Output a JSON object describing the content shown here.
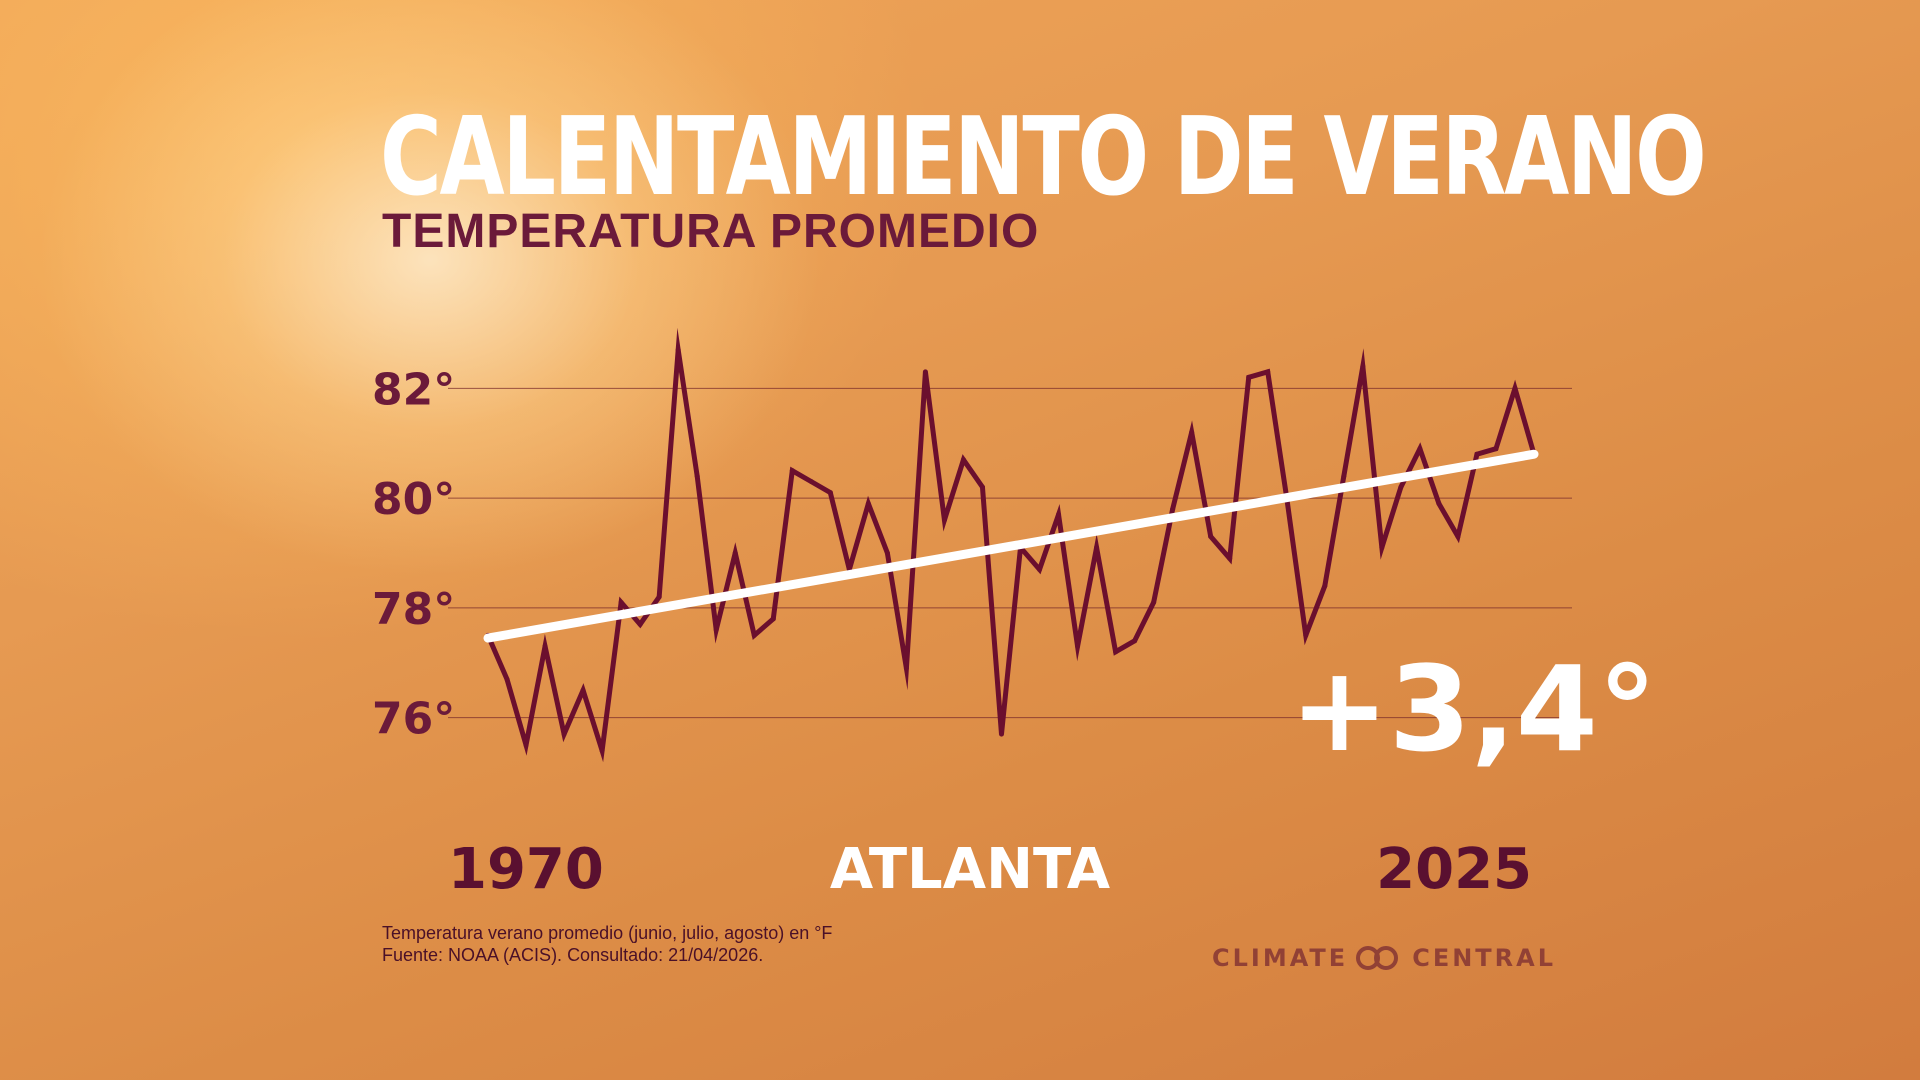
{
  "title": "CALENTAMIENTO DE VERANO",
  "subtitle": "TEMPERATURA PROMEDIO",
  "location": "ATLANTA",
  "change_label": "+3,4°",
  "footnote": {
    "line1": "Temperatura verano promedio (junio, julio, agosto) en °F",
    "line2": "Fuente: NOAA (ACIS). Consultado: 21/04/2026."
  },
  "logo": {
    "left_word": "CLIMATE",
    "right_word": "CENTRAL",
    "icon": "climate-central-rings-icon"
  },
  "colors": {
    "line": "#6b0f2e",
    "trend": "#ffffff",
    "grid": "#7a2a2a",
    "accent_text": "#6b1a3a"
  },
  "chart_data": {
    "type": "line",
    "title": "CALENTAMIENTO DE VERANO",
    "subtitle": "TEMPERATURA PROMEDIO",
    "xlabel": "",
    "ylabel": "",
    "x_start_label": "1970",
    "x_end_label": "2025",
    "xlim": [
      1970,
      2025
    ],
    "ylim": [
      74.5,
      83.5
    ],
    "yticks": [
      76,
      78,
      80,
      82
    ],
    "ytick_labels": [
      "76°",
      "78°",
      "80°",
      "82°"
    ],
    "grid": true,
    "x": [
      1970,
      1971,
      1972,
      1973,
      1974,
      1975,
      1976,
      1977,
      1978,
      1979,
      1980,
      1981,
      1982,
      1983,
      1984,
      1985,
      1986,
      1987,
      1988,
      1989,
      1990,
      1991,
      1992,
      1993,
      1994,
      1995,
      1996,
      1997,
      1998,
      1999,
      2000,
      2001,
      2002,
      2003,
      2004,
      2005,
      2006,
      2007,
      2008,
      2009,
      2010,
      2011,
      2012,
      2013,
      2014,
      2015,
      2016,
      2017,
      2018,
      2019,
      2020,
      2021,
      2022,
      2023,
      2024,
      2025
    ],
    "series": [
      {
        "values": [
          77.5,
          76.7,
          75.5,
          77.3,
          75.7,
          76.5,
          75.4,
          78.1,
          77.7,
          78.2,
          82.7,
          80.4,
          77.6,
          79.0,
          77.5,
          77.8,
          80.5,
          80.3,
          80.1,
          78.7,
          79.9,
          79.0,
          76.9,
          82.3,
          79.6,
          80.7,
          80.2,
          75.7,
          79.1,
          78.7,
          79.7,
          77.3,
          79.1,
          77.2,
          77.4,
          78.1,
          79.8,
          81.2,
          79.3,
          78.9,
          82.2,
          82.3,
          80.0,
          77.5,
          78.4,
          80.4,
          82.4,
          79.1,
          80.2,
          80.9,
          79.9,
          79.3,
          80.8,
          80.9,
          82.0,
          80.8
        ]
      }
    ],
    "trend": {
      "start": [
        1970,
        77.45
      ],
      "end": [
        2025,
        80.8
      ],
      "change": 3.4
    }
  }
}
